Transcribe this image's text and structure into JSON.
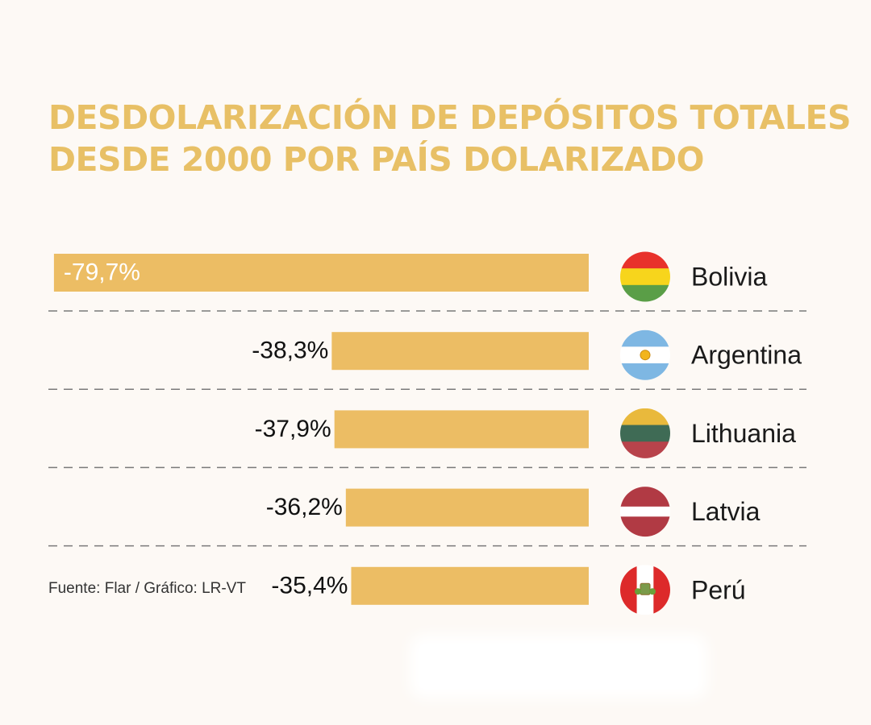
{
  "title": {
    "line1": "DESDOLARIZACIÓN DE DEPÓSITOS TOTALES",
    "line2": "DESDE 2000 POR PAÍS DOLARIZADO"
  },
  "source": "Fuente: Flar / Gráfico: LR-VT",
  "colors": {
    "bar": "#ecbd64",
    "title": "#e8c066",
    "divider": "#7a7a7a",
    "label_inside": "#ffffff",
    "label_outside": "#111111"
  },
  "chart_data": {
    "type": "bar",
    "orientation": "horizontal",
    "categories": [
      "Bolivia",
      "Argentina",
      "Lithuania",
      "Latvia",
      "Perú"
    ],
    "values": [
      -79.7,
      -38.3,
      -37.9,
      -36.2,
      -35.4
    ],
    "data_labels": [
      "-79,7%",
      "-38,3%",
      "-37,9%",
      "-36,2%",
      "-35,4%"
    ],
    "flag_icons": [
      "bolivia-flag-icon",
      "argentina-flag-icon",
      "lithuania-flag-icon",
      "latvia-flag-icon",
      "peru-flag-icon"
    ],
    "title": "DESDOLARIZACIÓN DE DEPÓSITOS TOTALES DESDE 2000 POR PAÍS DOLARIZADO",
    "grid": false,
    "legend": "none"
  }
}
